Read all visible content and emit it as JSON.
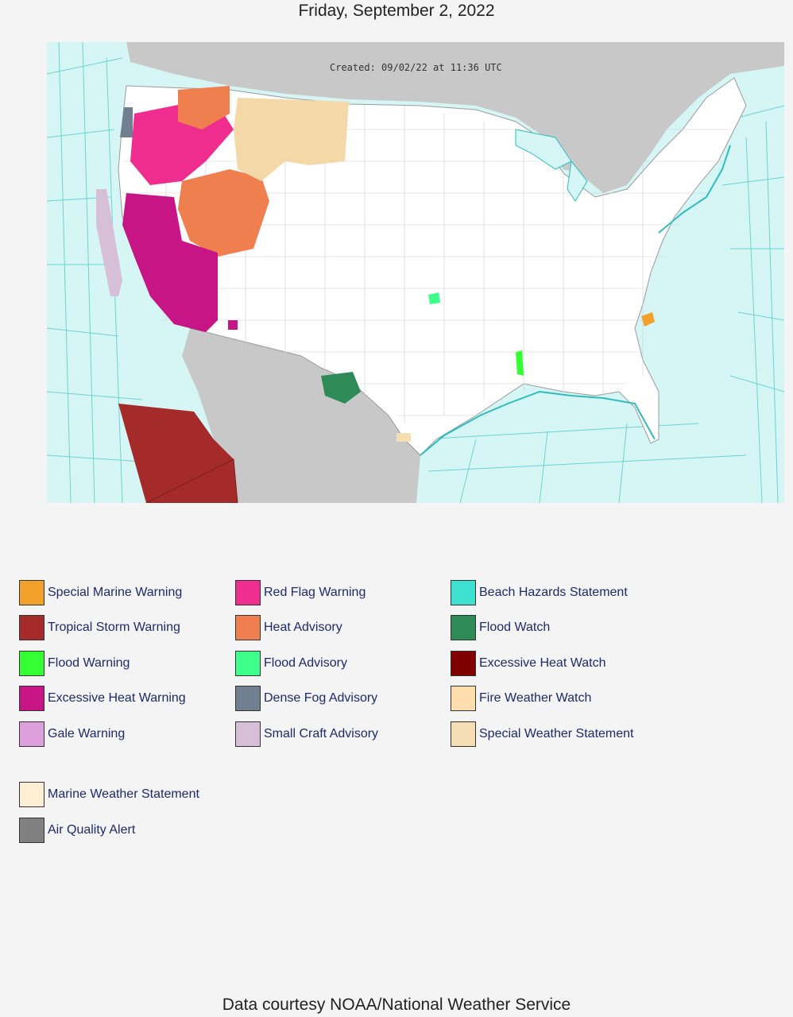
{
  "header": {
    "date": "Friday, September 2, 2022"
  },
  "map": {
    "created_stamp": "Created: 09/02/22 at 11:36 UTC"
  },
  "legend": {
    "col1": [
      {
        "label": "Special Marine Warning",
        "color": "#f2a12b"
      },
      {
        "label": "Tropical Storm Warning",
        "color": "#a52a2a"
      },
      {
        "label": "Flood Warning",
        "color": "#33ff33"
      },
      {
        "label": "Excessive Heat Warning",
        "color": "#c71585"
      },
      {
        "label": "Gale Warning",
        "color": "#dda0dd"
      }
    ],
    "col2": [
      {
        "label": "Red Flag Warning",
        "color": "#ef2d8e"
      },
      {
        "label": "Heat Advisory",
        "color": "#f07f50"
      },
      {
        "label": "Flood Advisory",
        "color": "#3dff8a"
      },
      {
        "label": "Dense Fog Advisory",
        "color": "#708090"
      },
      {
        "label": "Small Craft Advisory",
        "color": "#d8bfd8"
      }
    ],
    "col3": [
      {
        "label": "Beach Hazards Statement",
        "color": "#40e0d0"
      },
      {
        "label": "Flood Watch",
        "color": "#2e8b57"
      },
      {
        "label": "Excessive Heat Watch",
        "color": "#800000"
      },
      {
        "label": "Fire Weather Watch",
        "color": "#ffdead"
      },
      {
        "label": "Special Weather Statement",
        "color": "#f5deb3"
      }
    ],
    "extra": [
      {
        "label": "Marine Weather Statement",
        "color": "#ffefd5"
      },
      {
        "label": "Air Quality Alert",
        "color": "#808080"
      }
    ]
  },
  "footer": {
    "text": "Data courtesy NOAA/National Weather Service"
  }
}
